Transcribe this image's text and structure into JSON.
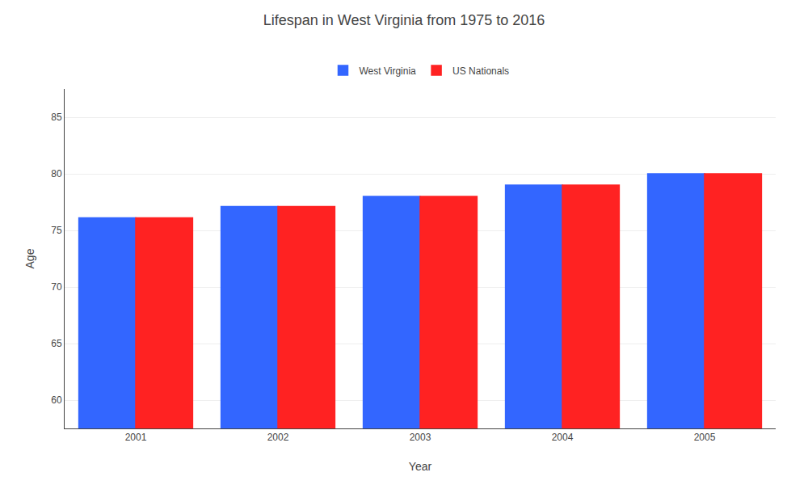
{
  "chart_data": {
    "type": "bar",
    "title": "Lifespan in West Virginia from 1975 to 2016",
    "x_label": "Year",
    "y_label": "Age",
    "categories": [
      "2001",
      "2002",
      "2003",
      "2004",
      "2005"
    ],
    "series": [
      {
        "name": "West Virginia",
        "color": "#3366ff",
        "values": [
          76.1,
          77.1,
          78.0,
          79.0,
          80.0
        ]
      },
      {
        "name": "US Nationals",
        "color": "#ff2222",
        "values": [
          76.1,
          77.1,
          78.0,
          79.0,
          80.0
        ]
      }
    ],
    "ylim": [
      57.5,
      87.5
    ],
    "yticks": [
      60,
      65,
      70,
      75,
      80,
      85
    ],
    "grid": true,
    "legend": "top"
  }
}
